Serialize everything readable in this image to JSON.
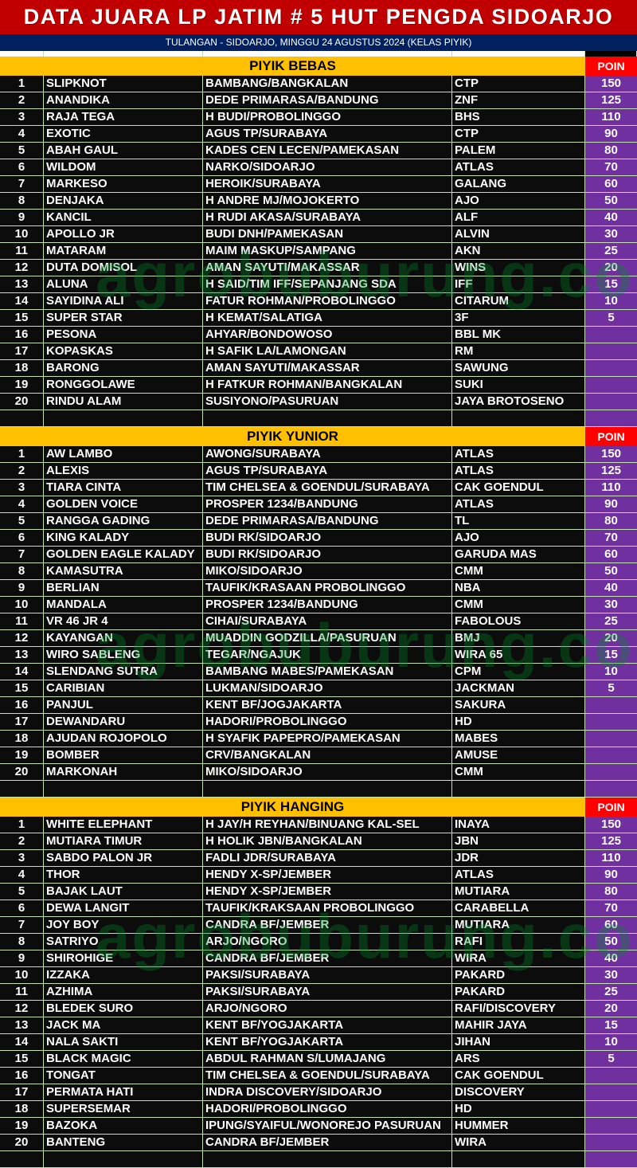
{
  "title": "DATA JUARA LP JATIM # 5 HUT PENGDA SIDOARJO",
  "subtitle": "TULANGAN - SIDOARJO, MINGGU 24 AGUSTUS 2024 (KELAS PIYIK)",
  "watermark": "agrobuburung.com",
  "colors": {
    "title_bg": "#c00000",
    "subtitle_bg": "#002060",
    "section_bg": "#ffc000",
    "poin_bg": "#ff0000",
    "points_bg": "#7030a0"
  },
  "sections": [
    {
      "title": "PIYIK BEBAS",
      "poin_label": "POIN",
      "rows": [
        [
          "1",
          "SLIPKNOT",
          "BAMBANG/BANGKALAN",
          "CTP",
          "150"
        ],
        [
          "2",
          "ANANDIKA",
          "DEDE PRIMARASA/BANDUNG",
          "ZNF",
          "125"
        ],
        [
          "3",
          "RAJA TEGA",
          "H BUDI/PROBOLINGGO",
          "BHS",
          "110"
        ],
        [
          "4",
          "EXOTIC",
          "AGUS TP/SURABAYA",
          "CTP",
          "90"
        ],
        [
          "5",
          "ABAH GAUL",
          "KADES CEN LECEN/PAMEKASAN",
          "PALEM",
          "80"
        ],
        [
          "6",
          "WILDOM",
          "NARKO/SIDOARJO",
          "ATLAS",
          "70"
        ],
        [
          "7",
          "MARKESO",
          "HEROIK/SURABAYA",
          "GALANG",
          "60"
        ],
        [
          "8",
          "DENJAKA",
          "H ANDRE MJ/MOJOKERTO",
          "AJO",
          "50"
        ],
        [
          "9",
          "KANCIL",
          "H RUDI AKASA/SURABAYA",
          "ALF",
          "40"
        ],
        [
          "10",
          "APOLLO JR",
          "BUDI DNH/PAMEKASAN",
          "ALVIN",
          "30"
        ],
        [
          "11",
          "MATARAM",
          "MAIM MASKUP/SAMPANG",
          "AKN",
          "25"
        ],
        [
          "12",
          "DUTA DOMISOL",
          "AMAN SAYUTI/MAKASSAR",
          "WINS",
          "20"
        ],
        [
          "13",
          "ALUNA",
          "H SAID/TIM IFF/SEPANJANG SDA",
          "IFF",
          "15"
        ],
        [
          "14",
          "SAYIDINA ALI",
          "FATUR ROHMAN/PROBOLINGGO",
          "CITARUM",
          "10"
        ],
        [
          "15",
          "SUPER STAR",
          "H KEMAT/SALATIGA",
          "3F",
          "5"
        ],
        [
          "16",
          "PESONA",
          "AHYAR/BONDOWOSO",
          "BBL MK",
          ""
        ],
        [
          "17",
          "KOPASKAS",
          "H SAFIK LA/LAMONGAN",
          "RM",
          ""
        ],
        [
          "18",
          "BARONG",
          "AMAN SAYUTI/MAKASSAR",
          "SAWUNG",
          ""
        ],
        [
          "19",
          "RONGGOLAWE",
          "H FATKUR ROHMAN/BANGKALAN",
          "SUKI",
          ""
        ],
        [
          "20",
          "RINDU ALAM",
          "SUSIYONO/PASURUAN",
          "JAYA BROTOSENO",
          ""
        ],
        [
          "",
          "",
          "",
          "",
          ""
        ]
      ]
    },
    {
      "title": "PIYIK YUNIOR",
      "poin_label": "POIN",
      "rows": [
        [
          "1",
          "AW LAMBO",
          "AWONG/SURABAYA",
          "ATLAS",
          "150"
        ],
        [
          "2",
          "ALEXIS",
          "AGUS TP/SURABAYA",
          "ATLAS",
          "125"
        ],
        [
          "3",
          "TIARA CINTA",
          "TIM CHELSEA & GOENDUL/SURABAYA",
          "CAK GOENDUL",
          "110"
        ],
        [
          "4",
          "GOLDEN VOICE",
          "PROSPER 1234/BANDUNG",
          "ATLAS",
          "90"
        ],
        [
          "5",
          "RANGGA GADING",
          "DEDE PRIMARASA/BANDUNG",
          "TL",
          "80"
        ],
        [
          "6",
          "KING KALADY",
          "BUDI RK/SIDOARJO",
          "AJO",
          "70"
        ],
        [
          "7",
          "GOLDEN EAGLE KALADY",
          "BUDI RK/SIDOARJO",
          "GARUDA MAS",
          "60"
        ],
        [
          "8",
          "KAMASUTRA",
          "MIKO/SIDOARJO",
          "CMM",
          "50"
        ],
        [
          "9",
          "BERLIAN",
          "TAUFIK/KRASAAN PROBOLINGGO",
          "NBA",
          "40"
        ],
        [
          "10",
          "MANDALA",
          "PROSPER 1234/BANDUNG",
          "CMM",
          "30"
        ],
        [
          "11",
          "VR 46 JR 4",
          "CIHAI/SURABAYA",
          "FABOLOUS",
          "25"
        ],
        [
          "12",
          "KAYANGAN",
          "MUADDIN GODZILLA/PASURUAN",
          "BMJ",
          "20"
        ],
        [
          "13",
          "WIRO SABLENG",
          "TEGAR/NGAJUK",
          "WIRA 65",
          "15"
        ],
        [
          "14",
          "SLENDANG SUTRA",
          "BAMBANG MABES/PAMEKASAN",
          "CPM",
          "10"
        ],
        [
          "15",
          "CARIBIAN",
          "LUKMAN/SIDOARJO",
          "JACKMAN",
          "5"
        ],
        [
          "16",
          "PANJUL",
          "KENT BF/JOGJAKARTA",
          "SAKURA",
          ""
        ],
        [
          "17",
          "DEWANDARU",
          "HADORI/PROBOLINGGO",
          "HD",
          ""
        ],
        [
          "18",
          "AJUDAN ROJOPOLO",
          "H SYAFIK PAPEPRO/PAMEKASAN",
          "MABES",
          ""
        ],
        [
          "19",
          "BOMBER",
          "CRV/BANGKALAN",
          "AMUSE",
          ""
        ],
        [
          "20",
          "MARKONAH",
          "MIKO/SIDOARJO",
          "CMM",
          ""
        ],
        [
          "",
          "",
          "",
          "",
          ""
        ]
      ]
    },
    {
      "title": "PIYIK HANGING",
      "poin_label": "POIN",
      "rows": [
        [
          "1",
          "WHITE ELEPHANT",
          "H JAY/H REYHAN/BINUANG KAL-SEL",
          "INAYA",
          "150"
        ],
        [
          "2",
          "MUTIARA TIMUR",
          "H HOLIK JBN/BANGKALAN",
          "JBN",
          "125"
        ],
        [
          "3",
          "SABDO PALON JR",
          "FADLI JDR/SURABAYA",
          "JDR",
          "110"
        ],
        [
          "4",
          "THOR",
          "HENDY X-SP/JEMBER",
          "ATLAS",
          "90"
        ],
        [
          "5",
          "BAJAK LAUT",
          "HENDY X-SP/JEMBER",
          "MUTIARA",
          "80"
        ],
        [
          "6",
          "DEWA LANGIT",
          "TAUFIK/KRAKSAAN PROBOLINGGO",
          "CARABELLA",
          "70"
        ],
        [
          "7",
          "JOY BOY",
          "CANDRA BF/JEMBER",
          "MUTIARA",
          "60"
        ],
        [
          "8",
          "SATRIYO",
          "ARJO/NGORO",
          "RAFI",
          "50"
        ],
        [
          "9",
          "SHIROHIGE",
          "CANDRA BF/JEMBER",
          "WIRA",
          "40"
        ],
        [
          "10",
          "IZZAKA",
          "PAKSI/SURABAYA",
          "PAKARD",
          "30"
        ],
        [
          "11",
          "AZHIMA",
          "PAKSI/SURABAYA",
          "PAKARD",
          "25"
        ],
        [
          "12",
          "BLEDEK SURO",
          "ARJO/NGORO",
          "RAFI/DISCOVERY",
          "20"
        ],
        [
          "13",
          "JACK MA",
          "KENT BF/YOGJAKARTA",
          "MAHIR JAYA",
          "15"
        ],
        [
          "14",
          "NALA SAKTI",
          "KENT BF/YOGJAKARTA",
          "JIHAN",
          "10"
        ],
        [
          "15",
          "BLACK MAGIC",
          "ABDUL RAHMAN S/LUMAJANG",
          "ARS",
          "5"
        ],
        [
          "16",
          "TONGAT",
          "TIM CHELSEA & GOENDUL/SURABAYA",
          "CAK GOENDUL",
          ""
        ],
        [
          "17",
          "PERMATA HATI",
          "INDRA DISCOVERY/SIDOARJO",
          "DISCOVERY",
          ""
        ],
        [
          "18",
          "SUPERSEMAR",
          "HADORI/PROBOLINGGO",
          "HD",
          ""
        ],
        [
          "19",
          "BAZOKA",
          "IPUNG/SYAIFUL/WONOREJO PASURUAN",
          "HUMMER",
          ""
        ],
        [
          "20",
          "BANTENG",
          "CANDRA BF/JEMBER",
          "WIRA",
          ""
        ],
        [
          "",
          "",
          "",
          "",
          ""
        ]
      ]
    }
  ]
}
